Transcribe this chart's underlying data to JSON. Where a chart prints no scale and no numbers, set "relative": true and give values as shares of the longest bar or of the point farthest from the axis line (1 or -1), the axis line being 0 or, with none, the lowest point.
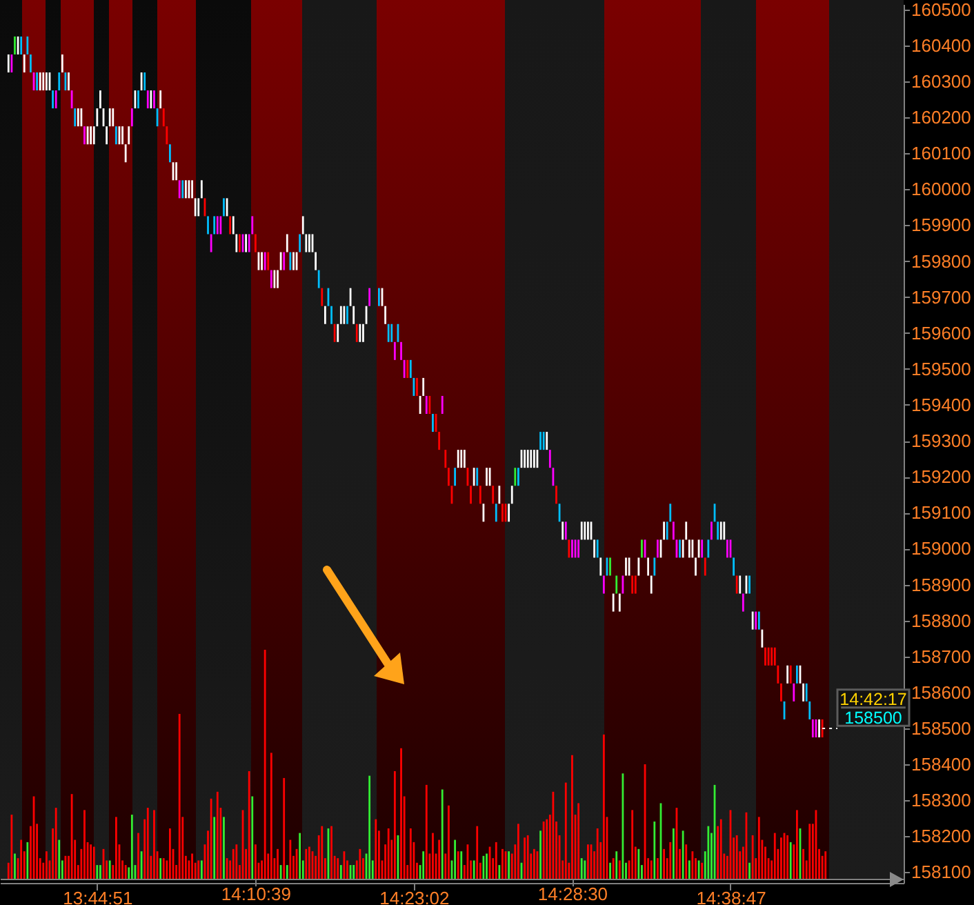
{
  "chart_data": [
    {
      "type": "bar",
      "categories": [
        null,
        null,
        null,
        null,
        null,
        null,
        null,
        null,
        null,
        null,
        null,
        null,
        null,
        null,
        null,
        null,
        null,
        null,
        null,
        null,
        null,
        null,
        null,
        null,
        null,
        null,
        null,
        null,
        "13:44:51",
        null,
        null,
        null,
        null,
        null,
        null,
        null,
        null,
        null,
        null,
        null,
        null,
        null,
        null,
        null,
        null,
        null,
        null,
        null,
        null,
        null,
        null,
        null,
        null,
        null,
        null,
        null,
        null,
        null,
        null,
        null,
        null,
        null,
        null,
        null,
        null,
        null,
        null,
        null,
        null,
        null,
        null,
        null,
        null,
        null,
        null,
        null,
        null,
        null,
        null,
        null,
        null,
        null,
        null,
        null,
        null,
        null,
        null,
        null,
        null,
        null,
        null,
        null,
        null,
        null,
        null,
        null,
        null,
        null,
        null,
        null,
        null,
        null,
        null,
        null,
        null,
        null,
        null,
        null,
        null,
        null,
        null,
        null,
        null,
        null,
        null,
        null,
        null,
        null,
        null,
        null,
        null,
        null,
        null,
        null,
        null,
        null,
        null,
        null,
        "14:23:02",
        null,
        null,
        null,
        null,
        null,
        null,
        null,
        null,
        null,
        null,
        null,
        null,
        null,
        null,
        null,
        null,
        null,
        null,
        null,
        null,
        null,
        null,
        null,
        null,
        null,
        null,
        null,
        null,
        null,
        null,
        null,
        null,
        null,
        null,
        null,
        null,
        null,
        null,
        null,
        null,
        null,
        null,
        null,
        null,
        null,
        null,
        null,
        null,
        null,
        null,
        null,
        null,
        null,
        null,
        null,
        null,
        null,
        null,
        null,
        null,
        null,
        null,
        null,
        null,
        null,
        null,
        null,
        null,
        null,
        null,
        null,
        null,
        null,
        null,
        null,
        null,
        null,
        null,
        null,
        null,
        null,
        null,
        null,
        null,
        null,
        null,
        null,
        null,
        null,
        null,
        null,
        null,
        null,
        null,
        null,
        null,
        null,
        null,
        null,
        "14:38:47",
        null,
        null,
        null,
        null,
        null,
        null,
        null,
        null,
        null,
        null,
        null,
        null,
        null,
        null,
        null,
        null,
        null,
        null,
        null,
        null,
        null,
        null,
        null,
        null,
        null,
        null,
        null,
        null,
        null,
        null,
        null,
        null,
        null,
        null,
        null,
        null,
        null,
        null,
        null,
        null,
        null,
        null,
        null,
        null,
        null,
        null,
        null,
        null,
        null,
        null,
        null,
        null
      ],
      "base": [
        160325,
        160325,
        160375,
        160375,
        160375,
        160325,
        160375,
        160325,
        160275,
        160275,
        160275,
        160275,
        160275,
        160275,
        160225,
        160225,
        160275,
        160325,
        160275,
        160275,
        160225,
        160175,
        160175,
        160175,
        160125,
        160125,
        160125,
        160125,
        160175,
        160225,
        160175,
        160125,
        160175,
        160175,
        160125,
        160125,
        160125,
        160075,
        160125,
        160175,
        160225,
        160225,
        160275,
        160275,
        160225,
        160225,
        160225,
        160175,
        160225,
        160175,
        160125,
        160075,
        160025,
        160025,
        159975,
        159975,
        159975,
        159975,
        159975,
        159925,
        159925,
        159975,
        159925,
        159875,
        159825,
        159875,
        159875,
        159875,
        159925,
        159925,
        159875,
        159875,
        159825,
        159825,
        159825,
        159825,
        159825,
        159875,
        159825,
        159775,
        159775,
        159775,
        159775,
        159725,
        159725,
        159725,
        159775,
        159775,
        159825,
        159775,
        159775,
        159775,
        159825,
        159875,
        159825,
        159825,
        159825,
        159775,
        159725,
        159675,
        159625,
        159675,
        159625,
        159575,
        159575,
        159625,
        159625,
        159625,
        159675,
        159625,
        159575,
        159575,
        159575,
        159625,
        159675,
        null,
        null,
        159675,
        159675,
        159625,
        159575,
        159575,
        159525,
        159575,
        159525,
        159475,
        159475,
        159475,
        159425,
        159425,
        159375,
        159425,
        159375,
        159375,
        159325,
        159325,
        159275,
        159375,
        159225,
        159175,
        159125,
        159175,
        159225,
        159225,
        159225,
        159175,
        159125,
        159175,
        159175,
        159125,
        159075,
        159175,
        159175,
        159125,
        159075,
        159125,
        159075,
        159075,
        159075,
        159125,
        159175,
        159175,
        159225,
        159225,
        159225,
        159225,
        159225,
        159225,
        159275,
        159275,
        159275,
        159225,
        159175,
        159125,
        159075,
        159025,
        159025,
        158975,
        158975,
        158975,
        158975,
        159025,
        159025,
        159025,
        159025,
        158975,
        158975,
        158925,
        158875,
        158925,
        158925,
        158825,
        158875,
        158825,
        158875,
        158925,
        158925,
        158875,
        158875,
        158925,
        158975,
        158975,
        158925,
        158875,
        158925,
        158975,
        158975,
        159025,
        159025,
        159075,
        159025,
        158975,
        158975,
        158975,
        159025,
        158975,
        158975,
        158925,
        158975,
        158975,
        158925,
        158975,
        159025,
        159075,
        159025,
        159025,
        159025,
        158975,
        158975,
        158925,
        158875,
        158875,
        158825,
        158875,
        158875,
        158775,
        158775,
        158775,
        158725,
        158675,
        158675,
        158675,
        158675,
        158625,
        158575,
        158525,
        158625,
        158625,
        158575,
        158625,
        158625,
        158575,
        158575,
        158525,
        158475,
        158475,
        158475,
        158475,
        null,
        null,
        null,
        null,
        null,
        null,
        null,
        null,
        null,
        null,
        null,
        null,
        null,
        null,
        null,
        null,
        null,
        null,
        null,
        null,
        null,
        null,
        null
      ],
      "values": [
        50,
        50,
        50,
        50,
        50,
        50,
        50,
        50,
        50,
        50,
        50,
        50,
        50,
        50,
        50,
        50,
        50,
        50,
        50,
        50,
        50,
        50,
        50,
        50,
        50,
        50,
        50,
        50,
        50,
        50,
        50,
        50,
        50,
        50,
        50,
        50,
        50,
        50,
        50,
        50,
        50,
        50,
        50,
        50,
        50,
        50,
        50,
        50,
        50,
        50,
        50,
        50,
        50,
        50,
        50,
        50,
        50,
        50,
        50,
        50,
        50,
        50,
        50,
        50,
        50,
        50,
        50,
        50,
        50,
        50,
        50,
        50,
        50,
        50,
        50,
        50,
        50,
        50,
        50,
        50,
        50,
        50,
        50,
        50,
        50,
        50,
        50,
        50,
        50,
        50,
        50,
        50,
        50,
        50,
        50,
        50,
        50,
        50,
        50,
        50,
        50,
        50,
        50,
        50,
        50,
        50,
        50,
        50,
        50,
        50,
        50,
        50,
        50,
        50,
        50,
        null,
        null,
        50,
        50,
        50,
        50,
        50,
        50,
        50,
        50,
        50,
        50,
        50,
        50,
        50,
        50,
        50,
        50,
        50,
        50,
        50,
        50,
        50,
        50,
        50,
        50,
        50,
        50,
        50,
        50,
        50,
        50,
        50,
        50,
        50,
        50,
        50,
        50,
        50,
        50,
        50,
        50,
        50,
        50,
        50,
        50,
        50,
        50,
        50,
        50,
        50,
        50,
        50,
        50,
        50,
        50,
        50,
        50,
        50,
        50,
        50,
        50,
        50,
        50,
        50,
        50,
        50,
        50,
        50,
        50,
        50,
        50,
        50,
        50,
        50,
        50,
        50,
        50,
        50,
        50,
        50,
        50,
        50,
        50,
        50,
        50,
        50,
        50,
        50,
        50,
        50,
        50,
        50,
        50,
        50,
        50,
        50,
        50,
        50,
        50,
        50,
        50,
        50,
        50,
        50,
        50,
        50,
        50,
        50,
        50,
        50,
        50,
        50,
        50,
        50,
        50,
        50,
        50,
        50,
        50,
        50,
        50,
        50,
        50,
        50,
        50,
        50,
        50,
        50,
        50,
        50,
        50,
        50,
        50,
        50,
        50,
        50,
        50,
        50,
        50,
        50,
        50,
        50,
        null,
        null,
        null,
        null,
        null,
        null,
        null,
        null,
        null,
        null,
        null,
        null,
        null,
        null,
        null,
        null,
        null,
        null,
        null,
        null,
        null,
        null,
        null
      ],
      "colors": [
        "#ffffff",
        "#ff00ff",
        "#33ee33",
        "#ffffff",
        "#00bfff",
        "#ffffff",
        "#00bfff",
        "#00bfff",
        "#ff00ff",
        "#00bfff",
        "#ffffff",
        "#ffffff",
        "#ffffff",
        "#ffffff",
        "#00bfff",
        "#ff00ff",
        "#00bfff",
        "#ffffff",
        "#00bfff",
        "#ffffff",
        "#ff00ff",
        "#00bfff",
        "#ffffff",
        "#ffffff",
        "#ff00ff",
        "#ffffff",
        "#ffffff",
        "#ffffff",
        "#ffffff",
        "#ffffff",
        "#ffffff",
        "#ffffff",
        "#ffffff",
        "#ffffff",
        "#00bfff",
        "#ffffff",
        "#ffffff",
        "#ffffff",
        "#ffffff",
        "#ff00ff",
        "#ffffff",
        "#00bfff",
        "#ffffff",
        "#00bfff",
        "#ff00ff",
        "#ffffff",
        "#ff00ff",
        "#00bfff",
        "#ffffff",
        "#ff0000",
        "#ff0000",
        "#00bfff",
        "#ffffff",
        "#ffffff",
        "#ff00ff",
        "#00bfff",
        "#ffffff",
        "#ffffff",
        "#ffffff",
        "#ffffff",
        "#ffffff",
        "#ffffff",
        "#ff0000",
        "#00bfff",
        "#ff00ff",
        "#00bfff",
        "#ff00ff",
        "#ff00ff",
        "#00bfff",
        "#ffffff",
        "#ff0000",
        "#ffffff",
        "#ffffff",
        "#ff0000",
        "#ff00ff",
        "#ffffff",
        "#ff00ff",
        "#ff00ff",
        "#ff0000",
        "#ffffff",
        "#ffffff",
        "#ff00ff",
        "#ff0000",
        "#ff00ff",
        "#ffffff",
        "#ffffff",
        "#ffffff",
        "#ff00ff",
        "#ffffff",
        "#00bfff",
        "#ffffff",
        "#ffffff",
        "#00bfff",
        "#ffffff",
        "#ffffff",
        "#ffffff",
        "#ffffff",
        "#ffffff",
        "#00bfff",
        "#ff0000",
        "#ffffff",
        "#00bfff",
        "#00bfff",
        "#ff0000",
        "#ffffff",
        "#ffffff",
        "#ffffff",
        "#00bfff",
        "#ffffff",
        "#ffffff",
        "#ff0000",
        "#ffffff",
        "#ffffff",
        "#ffffff",
        "#ff00ff",
        null,
        null,
        "#00bfff",
        "#ffffff",
        "#ffffff",
        "#00bfff",
        "#00bfff",
        "#ff00ff",
        "#00bfff",
        "#ff00ff",
        "#ff00ff",
        "#ff0000",
        "#00bfff",
        "#00bfff",
        "#ff0000",
        "#ffffff",
        "#ffffff",
        "#ff00ff",
        "#ff0000",
        "#00bfff",
        "#ff0000",
        "#ff0000",
        "#ff00ff",
        "#ff0000",
        "#ff0000",
        "#ff0000",
        "#00bfff",
        "#ffffff",
        "#ffffff",
        "#ffffff",
        "#ff0000",
        "#ff0000",
        "#ffffff",
        "#00bfff",
        "#ff0000",
        "#ffffff",
        "#ffffff",
        "#ffffff",
        "#ff0000",
        "#00bfff",
        "#ffffff",
        "#ff0000",
        "#ff0000",
        "#ffffff",
        "#ffffff",
        "#33ee33",
        "#00bfff",
        "#ffffff",
        "#ffffff",
        "#ffffff",
        "#ffffff",
        "#ffffff",
        "#ffffff",
        "#00bfff",
        "#00bfff",
        "#ffffff",
        "#ff00ff",
        "#ff00ff",
        "#ff0000",
        "#00bfff",
        "#ffffff",
        "#ff00ff",
        "#ff0000",
        "#ff00ff",
        "#ff00ff",
        "#ff00ff",
        "#ffffff",
        "#ffffff",
        "#ffffff",
        "#ffffff",
        "#ffffff",
        "#00bfff",
        "#ffffff",
        "#ff00ff",
        "#00bfff",
        "#33ee33",
        "#ffffff",
        "#33ee33",
        "#ffffff",
        "#ff00ff",
        "#ffffff",
        "#ffffff",
        "#ff0000",
        "#ff0000",
        "#ffffff",
        "#33ee33",
        "#ff00ff",
        "#ffffff",
        "#ffffff",
        "#00bfff",
        "#ff00ff",
        "#ffffff",
        "#ffffff",
        "#00bfff",
        "#00bfff",
        "#ff00ff",
        "#ff00ff",
        "#00bfff",
        "#ffffff",
        "#ffffff",
        "#ffffff",
        "#ffffff",
        "#ffffff",
        "#ffffff",
        "#ff00ff",
        "#ff0000",
        "#00bfff",
        "#ff00ff",
        "#00bfff",
        "#00bfff",
        "#ffffff",
        "#ffffff",
        "#ff00ff",
        "#ff00ff",
        "#00bfff",
        "#ff0000",
        "#ffffff",
        "#ff00ff",
        "#ffffff",
        "#00bfff",
        "#ffffff",
        "#ff00ff",
        "#00bfff",
        "#ffffff",
        "#ff0000",
        "#ff0000",
        "#ff0000",
        "#ff0000",
        "#ff0000",
        "#ff0000",
        "#00bfff",
        "#ffffff",
        "#ff0000",
        "#ff00ff",
        "#00bfff",
        "#ffffff",
        "#ffffff",
        "#00bfff",
        "#00bfff",
        "#ff00ff",
        "#ff00ff",
        "#ffffff",
        "#ff0000",
        null,
        null,
        null,
        null,
        null,
        null,
        null,
        null,
        null,
        null,
        null,
        null,
        null,
        null,
        null,
        null,
        null,
        null,
        null,
        null,
        null,
        null,
        null
      ],
      "ylim": [
        158070,
        160515
      ],
      "yticks": [
        158100,
        158200,
        158300,
        158400,
        158500,
        158600,
        158700,
        158800,
        158900,
        159000,
        159100,
        159200,
        159300,
        159400,
        159500,
        159600,
        159700,
        159800,
        159900,
        160000,
        160100,
        160200,
        160300,
        160400,
        160500
      ],
      "ref_lines": [
        {
          "axis": "y",
          "value": 158500,
          "label": "158500",
          "color": "#ffffff",
          "line_style": "dotted"
        }
      ],
      "annotations": [
        "14:42:17"
      ]
    },
    {
      "type": "bar",
      "relative": true,
      "categories": [
        null,
        null,
        null,
        null,
        null,
        null,
        null,
        null,
        null,
        null,
        null,
        null,
        null,
        null,
        null,
        null,
        null,
        null,
        null,
        null,
        null,
        null,
        null,
        null,
        null,
        null,
        null,
        null,
        null,
        null,
        null,
        null,
        null,
        null,
        null,
        null,
        null,
        null,
        null,
        null,
        null,
        null,
        null,
        null,
        null,
        null,
        null,
        null,
        null,
        null,
        null,
        null,
        null,
        null,
        null,
        null,
        null,
        null,
        null,
        null,
        null,
        null,
        null,
        null,
        null,
        null,
        null,
        null,
        null,
        null,
        null,
        null,
        null,
        null,
        null,
        null,
        null,
        null,
        "14:10:39",
        null,
        null,
        null,
        null,
        null,
        null,
        null,
        null,
        null,
        null,
        null,
        null,
        null,
        null,
        null,
        null,
        null,
        null,
        null,
        null,
        null,
        null,
        null,
        null,
        null,
        null,
        null,
        null,
        null,
        null,
        null,
        null,
        null,
        null,
        null,
        null,
        null,
        null,
        null,
        null,
        null,
        null,
        null,
        null,
        null,
        null,
        null,
        null,
        null,
        null,
        null,
        null,
        null,
        null,
        null,
        null,
        null,
        null,
        null,
        null,
        null,
        null,
        null,
        null,
        null,
        null,
        null,
        null,
        null,
        null,
        null,
        null,
        null,
        null,
        null,
        null,
        null,
        null,
        null,
        null,
        null,
        null,
        null,
        null,
        null,
        null,
        null,
        null,
        null,
        null,
        null,
        null,
        null,
        null,
        null,
        null,
        null,
        null,
        null,
        "14:28:30",
        null,
        null,
        null,
        null,
        null,
        null,
        null,
        null,
        null,
        null,
        null,
        null,
        null,
        null,
        null,
        null,
        null,
        null,
        null,
        null,
        null,
        null,
        null,
        null,
        null,
        null,
        null,
        null,
        null,
        null,
        null,
        null,
        null,
        null,
        null,
        null,
        null,
        null,
        null,
        null,
        null,
        null,
        null,
        null,
        null,
        null,
        null,
        null,
        null,
        null,
        null,
        null,
        null,
        null,
        null,
        null,
        null,
        null,
        null,
        null,
        null,
        null,
        null,
        null,
        null,
        null,
        null,
        null,
        null,
        null,
        null,
        null,
        null,
        null,
        null,
        null,
        null,
        null,
        null,
        null,
        null,
        null,
        null,
        null,
        null,
        null,
        null,
        null,
        null,
        null,
        null,
        null,
        null,
        null,
        null,
        null,
        null,
        null,
        null,
        null,
        null,
        null
      ],
      "values": [
        0.07,
        0.28,
        0.11,
        0.09,
        0.17,
        0.12,
        0.16,
        0.23,
        0.36,
        0.24,
        0.09,
        0.07,
        0.12,
        0.08,
        0.22,
        0.31,
        0.17,
        0.08,
        0.1,
        0.1,
        0.37,
        0.17,
        0.06,
        0.13,
        0.3,
        0.16,
        0.15,
        0.14,
        0.06,
        0.06,
        0.13,
        0.08,
        0.08,
        0.06,
        0.27,
        0.15,
        0.08,
        0.06,
        0.05,
        0.28,
        0.06,
        0.2,
        0.12,
        0.26,
        0.31,
        0.1,
        0.3,
        0.12,
        0.09,
        0.09,
        0.08,
        0.22,
        0.13,
        0.06,
        0.72,
        0.27,
        0.1,
        0.08,
        0.11,
        0.07,
        0.08,
        0.08,
        0.15,
        0.21,
        0.35,
        0.27,
        0.38,
        0.31,
        0.27,
        0.09,
        0.08,
        0.13,
        0.15,
        0.06,
        0.3,
        0.13,
        0.47,
        0.36,
        0.15,
        0.07,
        0.08,
        1,
        0.11,
        0.55,
        0.09,
        0.13,
        0.06,
        0.44,
        0.06,
        0.17,
        0.1,
        0.13,
        0.2,
        0.08,
        0.13,
        0.14,
        0.12,
        0.1,
        0.19,
        0.23,
        0.09,
        0.22,
        0.23,
        0.1,
        0.09,
        0.06,
        0.12,
        0.08,
        0.06,
        0.06,
        0.08,
        0.13,
        0.09,
        0.11,
        0.45,
        0.08,
        0.26,
        0.21,
        0.08,
        0.15,
        0.22,
        0.17,
        0.47,
        0.19,
        0.57,
        0.36,
        0.06,
        0.22,
        0.16,
        0.07,
        0.06,
        0.12,
        0.41,
        0.11,
        0.2,
        0.11,
        0.17,
        0.39,
        0.11,
        0.32,
        0.08,
        0.17,
        0.12,
        0.12,
        0.06,
        0.15,
        0.08,
        0.08,
        0.23,
        0.07,
        0.1,
        0.11,
        0.14,
        0.09,
        0.16,
        0.06,
        0.13,
        0.12,
        0.12,
        0.11,
        0.15,
        0.24,
        0.07,
        0.18,
        0.19,
        0.11,
        0.13,
        0.12,
        0.21,
        0.25,
        0.26,
        0.28,
        0.38,
        0.25,
        0.19,
        0.08,
        0.42,
        0.07,
        0.54,
        0.28,
        0.33,
        0.09,
        0.08,
        0.15,
        0.15,
        0.12,
        0.22,
        0.16,
        0.63,
        0.27,
        0.07,
        0.09,
        0.12,
        0.08,
        0.46,
        0.07,
        0.08,
        0.3,
        0.14,
        0.13,
        0.06,
        0.5,
        0.09,
        0.08,
        0.25,
        0.09,
        0.33,
        0.13,
        0.09,
        0.16,
        0.22,
        0.31,
        0.13,
        0.21,
        0.15,
        0.08,
        0.12,
        0.09,
        0.08,
        0.07,
        0.12,
        0.23,
        0.2,
        0.41,
        0.23,
        0.26,
        0.11,
        0.1,
        0.3,
        0.18,
        0.19,
        0.12,
        0.14,
        0.29,
        0.07,
        0.19,
        0.09,
        0.27,
        0.17,
        0.14,
        0.09,
        0.08,
        0.2,
        0.13,
        0.18,
        0.2,
        0.19,
        0.16,
        0.15,
        0.3,
        0.22,
        0.13,
        0.08,
        0.24,
        0.24,
        0.3,
        0.13,
        0.1,
        0.12,
        null,
        null,
        null,
        null,
        null,
        null,
        null,
        null,
        null,
        null,
        null,
        null,
        null,
        null,
        null,
        null,
        null,
        null,
        null,
        null,
        null,
        null
      ],
      "colors": [
        "#ff0000",
        "#ff0000",
        "#33ee33",
        "#ff0000",
        "#ff0000",
        "#ff0000",
        "#33ee33",
        "#ff0000",
        "#ff0000",
        "#ff0000",
        "#ff0000",
        "#ff0000",
        "#ff0000",
        "#ff0000",
        "#ff0000",
        "#ff0000",
        "#33ee33",
        "#33ee33",
        "#ff0000",
        "#ff0000",
        "#ff0000",
        "#ff0000",
        "#ff0000",
        "#ff0000",
        "#ff0000",
        "#ff0000",
        "#ff0000",
        "#ff0000",
        "#33ee33",
        "#33ee33",
        "#ff0000",
        "#ff0000",
        "#33ee33",
        "#ff0000",
        "#ff0000",
        "#ff0000",
        "#ff0000",
        "#ff0000",
        "#33ee33",
        "#33ee33",
        "#33ee33",
        "#ff0000",
        "#33ee33",
        "#ff0000",
        "#ff0000",
        "#ff0000",
        "#ff0000",
        "#ff0000",
        "#33ee33",
        "#ff0000",
        "#ff0000",
        "#ff0000",
        "#ff0000",
        "#ff0000",
        "#ff0000",
        "#ff0000",
        "#ff0000",
        "#ff0000",
        "#ff0000",
        "#ff0000",
        "#ff0000",
        "#33ee33",
        "#ff0000",
        "#ff0000",
        "#ff0000",
        "#33ee33",
        "#ff0000",
        "#ff0000",
        "#33ee33",
        "#ff0000",
        "#ff0000",
        "#ff0000",
        "#ff0000",
        "#ff0000",
        "#ff0000",
        "#ff0000",
        "#ff0000",
        "#33ee33",
        "#ff0000",
        "#ff0000",
        "#ff0000",
        "#ff0000",
        "#ff0000",
        "#ff0000",
        "#ff0000",
        "#ff0000",
        "#33ee33",
        "#ff0000",
        "#33ee33",
        "#ff0000",
        "#ff0000",
        "#ff0000",
        "#33ee33",
        "#33ee33",
        "#ff0000",
        "#ff0000",
        "#ff0000",
        "#ff0000",
        "#ff0000",
        "#ff0000",
        "#ff0000",
        "#33ee33",
        "#ff0000",
        "#ff0000",
        "#ff0000",
        "#33ee33",
        "#ff0000",
        "#ff0000",
        "#33ee33",
        "#33ee33",
        "#ff0000",
        "#ff0000",
        "#ff0000",
        "#33ee33",
        "#33ee33",
        "#33ee33",
        "#ff0000",
        "#ff0000",
        "#ff0000",
        "#ff0000",
        "#ff0000",
        "#ff0000",
        "#ff0000",
        "#33ee33",
        "#ff0000",
        "#ff0000",
        "#ff0000",
        "#ff0000",
        "#ff0000",
        "#ff0000",
        "#33ee33",
        "#33ee33",
        "#ff0000",
        "#ff0000",
        "#ff0000",
        "#ff0000",
        "#ff0000",
        "#33ee33",
        "#ff0000",
        "#ff0000",
        "#33ee33",
        "#33ee33",
        "#ff0000",
        "#33ee33",
        "#ff0000",
        "#ff0000",
        "#ff0000",
        "#33ee33",
        "#ff0000",
        "#ff0000",
        "#33ee33",
        "#33ee33",
        "#ff0000",
        "#ff0000",
        "#ff0000",
        "#33ee33",
        "#ff0000",
        "#ff0000",
        "#33ee33",
        "#ff0000",
        "#ff0000",
        "#ff0000",
        "#33ee33",
        "#ff0000",
        "#ff0000",
        "#ff0000",
        "#ff0000",
        "#ff0000",
        "#33ee33",
        "#ff0000",
        "#ff0000",
        "#ff0000",
        "#ff0000",
        "#ff0000",
        "#ff0000",
        "#ff0000",
        "#ff0000",
        "#ff0000",
        "#ff0000",
        "#ff0000",
        "#ff0000",
        "#33ee33",
        "#33ee33",
        "#ff0000",
        "#ff0000",
        "#ff0000",
        "#ff0000",
        "#ff0000",
        "#ff0000",
        "#ff0000",
        "#33ee33",
        "#ff0000",
        "#33ee33",
        "#ff0000",
        "#33ee33",
        "#33ee33",
        "#ff0000",
        "#ff0000",
        "#ff0000",
        "#33ee33",
        "#33ee33",
        "#ff0000",
        "#ff0000",
        "#ff0000",
        "#33ee33",
        "#ff0000",
        "#33ee33",
        "#ff0000",
        "#ff0000",
        "#ff0000",
        "#33ee33",
        "#ff0000",
        "#ff0000",
        "#33ee33",
        "#ff0000",
        "#33ee33",
        "#ff0000",
        "#ff0000",
        "#33ee33",
        "#ff0000",
        "#33ee33",
        "#33ee33",
        "#33ee33",
        "#33ee33",
        "#ff0000",
        "#ff0000",
        "#ff0000",
        "#ff0000",
        "#ff0000",
        "#ff0000",
        "#ff0000",
        "#ff0000",
        "#ff0000",
        "#ff0000",
        "#33ee33",
        "#ff0000",
        "#ff0000",
        "#ff0000",
        "#ff0000",
        "#ff0000",
        "#ff0000",
        "#ff0000",
        "#ff0000",
        "#ff0000",
        "#ff0000",
        "#ff0000",
        "#ff0000",
        "#33ee33",
        "#ff0000",
        "#ff0000",
        "#33ee33",
        "#ff0000",
        "#ff0000",
        "#ff0000",
        "#ff0000",
        "#ff0000",
        "#ff0000",
        "#ff0000",
        "#ff0000",
        null,
        null,
        null,
        null,
        null,
        null,
        null,
        null,
        null,
        null,
        null,
        null,
        null,
        null,
        null,
        null,
        null,
        null,
        null,
        null,
        null,
        null
      ],
      "tick_labels": "x"
    }
  ]
}
